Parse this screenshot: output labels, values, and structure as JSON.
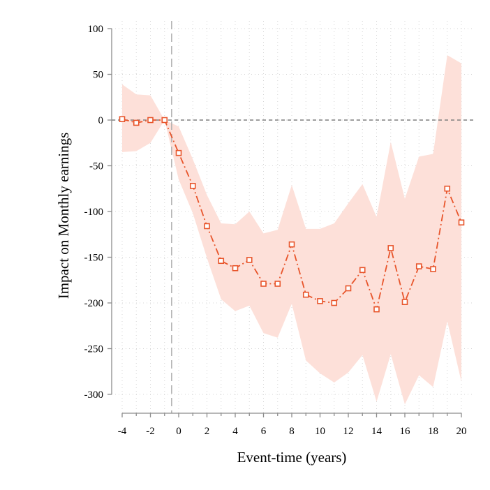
{
  "chart_data": {
    "type": "line",
    "xlabel": "Event-time (years)",
    "ylabel": "Impact on Monthly earnings",
    "xlim": [
      -4,
      20
    ],
    "ylim": [
      -300,
      100
    ],
    "x_ticks": [
      -4,
      -2,
      0,
      2,
      4,
      6,
      8,
      10,
      12,
      14,
      16,
      18,
      20
    ],
    "y_ticks": [
      100,
      50,
      0,
      -50,
      -100,
      -150,
      -200,
      -250,
      -300
    ],
    "x_tick_labels": [
      "-4",
      "-2",
      "0",
      "2",
      "4",
      "6",
      "8",
      "10",
      "12",
      "14",
      "16",
      "18",
      "20"
    ],
    "y_tick_labels": [
      "100",
      "50",
      "0",
      "-50",
      "-100",
      "-150",
      "-200",
      "-250",
      "-300"
    ],
    "grid": true,
    "zero_line": 0,
    "event_line_x": -0.5,
    "x": [
      -4,
      -3,
      -2,
      -1,
      0,
      1,
      2,
      3,
      4,
      5,
      6,
      7,
      8,
      9,
      10,
      11,
      12,
      13,
      14,
      15,
      16,
      17,
      18,
      19,
      20
    ],
    "series": [
      {
        "values": [
          1,
          -3,
          0,
          0,
          -36,
          -72,
          -116,
          -154,
          -162,
          -153,
          -179,
          -179,
          -136,
          -191,
          -198,
          -200,
          -184,
          -164,
          -207,
          -140,
          -199,
          -160,
          -163,
          -75,
          -112
        ],
        "ci_upper": [
          39,
          28,
          27,
          0,
          -7,
          -43,
          -82,
          -113,
          -114,
          -100,
          -124,
          -120,
          -71,
          -119,
          -119,
          -113,
          -91,
          -70,
          -106,
          -24,
          -86,
          -40,
          -37,
          71,
          62
        ],
        "ci_lower": [
          -35,
          -34,
          -25,
          0,
          -65,
          -102,
          -151,
          -196,
          -209,
          -203,
          -233,
          -238,
          -201,
          -263,
          -277,
          -287,
          -276,
          -257,
          -308,
          -256,
          -311,
          -279,
          -292,
          -220,
          -286
        ]
      }
    ],
    "colors": {
      "line": "#e8552b",
      "ci_band": "#fde0d9",
      "zero_line": "#7f7f7f",
      "event_line": "#b0b0b0",
      "grid": "#d4d4d4",
      "axis": "#8c8c8c"
    }
  }
}
